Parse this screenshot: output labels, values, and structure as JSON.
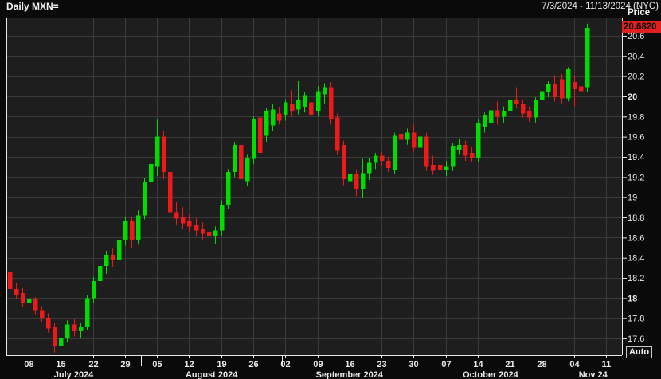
{
  "header": {
    "title": "Daily MXN=",
    "date_range": "7/3/2024 - 11/13/2024 (NYC)"
  },
  "y_axis": {
    "label": "Price",
    "tick_labels": [
      "20.6",
      "20.4",
      "20.2",
      "20",
      "19.8",
      "19.6",
      "19.4",
      "19.2",
      "19",
      "18.8",
      "18.6",
      "18.4",
      "18.2",
      "18",
      "17.8",
      "17.6"
    ],
    "bold_tick_labels": [
      "20",
      "18"
    ],
    "price_badge": {
      "value": "20.6820"
    },
    "auto_button_label": "Auto"
  },
  "x_axis": {
    "week_ticks": [
      {
        "label": "08",
        "slot": 3
      },
      {
        "label": "15",
        "slot": 8
      },
      {
        "label": "22",
        "slot": 13
      },
      {
        "label": "29",
        "slot": 18
      },
      {
        "label": "05",
        "slot": 23
      },
      {
        "label": "12",
        "slot": 28
      },
      {
        "label": "19",
        "slot": 33
      },
      {
        "label": "26",
        "slot": 38
      },
      {
        "label": "02",
        "slot": 43
      },
      {
        "label": "09",
        "slot": 48
      },
      {
        "label": "16",
        "slot": 53
      },
      {
        "label": "23",
        "slot": 58
      },
      {
        "label": "30",
        "slot": 63
      },
      {
        "label": "07",
        "slot": 68
      },
      {
        "label": "14",
        "slot": 73
      },
      {
        "label": "21",
        "slot": 78
      },
      {
        "label": "28",
        "slot": 83
      },
      {
        "label": "04",
        "slot": 88
      },
      {
        "label": "11",
        "slot": 93
      }
    ],
    "month_labels": [
      {
        "label": "July 2024",
        "slot": 10
      },
      {
        "label": "August 2024",
        "slot": 31.5
      },
      {
        "label": "September 2024",
        "slot": 53
      },
      {
        "label": "October 2024",
        "slot": 75
      },
      {
        "label": "Nov 24",
        "slot": 91
      }
    ],
    "month_separators": [
      20.5,
      42.5,
      63.5,
      86.5
    ]
  },
  "colors": {
    "background": "#0a0a0a",
    "plot_background": "#1e1e1e",
    "grid": "#3a3a3a",
    "frame": "#e8e8e8",
    "text": "#e9e9e9",
    "up": "#00dc00",
    "down": "#ee1a1a",
    "badge_background": "#e32020",
    "badge_text": "#000000"
  },
  "chart_data": {
    "type": "candlestick",
    "title": "Daily MXN=",
    "symbol": "MXN=",
    "interval": "Daily",
    "visible_range": "7/3/2024 - 11/13/2024",
    "last_price": 20.682,
    "ylim": [
      17.435,
      20.781
    ],
    "grid_step": 0.2,
    "total_slots": 96,
    "dates": [
      "7/3",
      "7/4",
      "7/5",
      "7/8",
      "7/9",
      "7/10",
      "7/11",
      "7/12",
      "7/15",
      "7/16",
      "7/17",
      "7/18",
      "7/19",
      "7/22",
      "7/23",
      "7/24",
      "7/25",
      "7/26",
      "7/29",
      "7/30",
      "7/31",
      "8/1",
      "8/2",
      "8/5",
      "8/6",
      "8/7",
      "8/8",
      "8/9",
      "8/12",
      "8/13",
      "8/14",
      "8/15",
      "8/16",
      "8/19",
      "8/20",
      "8/21",
      "8/22",
      "8/23",
      "8/26",
      "8/27",
      "8/28",
      "8/29",
      "8/30",
      "9/2",
      "9/3",
      "9/4",
      "9/5",
      "9/6",
      "9/9",
      "9/10",
      "9/11",
      "9/12",
      "9/13",
      "9/16",
      "9/17",
      "9/18",
      "9/19",
      "9/20",
      "9/23",
      "9/24",
      "9/25",
      "9/26",
      "9/27",
      "9/30",
      "10/1",
      "10/2",
      "10/3",
      "10/4",
      "10/7",
      "10/8",
      "10/9",
      "10/10",
      "10/11",
      "10/14",
      "10/15",
      "10/16",
      "10/17",
      "10/18",
      "10/21",
      "10/22",
      "10/23",
      "10/24",
      "10/25",
      "10/28",
      "10/29",
      "10/30",
      "10/31",
      "11/1",
      "11/4",
      "11/5",
      "11/6"
    ],
    "ohlc": [
      [
        18.26,
        18.31,
        18.04,
        18.09
      ],
      [
        18.09,
        18.15,
        17.99,
        18.03
      ],
      [
        18.05,
        18.1,
        17.91,
        17.95
      ],
      [
        17.95,
        18.04,
        17.89,
        17.99
      ],
      [
        17.99,
        18.01,
        17.84,
        17.88
      ],
      [
        17.88,
        17.92,
        17.76,
        17.8
      ],
      [
        17.8,
        17.85,
        17.66,
        17.7
      ],
      [
        17.71,
        17.75,
        17.46,
        17.52
      ],
      [
        17.52,
        17.66,
        17.45,
        17.61
      ],
      [
        17.61,
        17.78,
        17.56,
        17.74
      ],
      [
        17.74,
        17.79,
        17.62,
        17.67
      ],
      [
        17.67,
        17.75,
        17.6,
        17.71
      ],
      [
        17.71,
        18.03,
        17.68,
        18.0
      ],
      [
        18.0,
        18.21,
        17.95,
        18.17
      ],
      [
        18.17,
        18.36,
        18.1,
        18.32
      ],
      [
        18.32,
        18.47,
        18.24,
        18.43
      ],
      [
        18.43,
        18.49,
        18.31,
        18.38
      ],
      [
        18.38,
        18.62,
        18.33,
        18.58
      ],
      [
        18.58,
        18.81,
        18.52,
        18.77
      ],
      [
        18.77,
        18.81,
        18.5,
        18.57
      ],
      [
        18.57,
        18.87,
        18.53,
        18.82
      ],
      [
        18.82,
        19.19,
        18.78,
        19.15
      ],
      [
        19.15,
        20.05,
        19.09,
        19.33
      ],
      [
        19.3,
        19.77,
        19.21,
        19.6
      ],
      [
        19.6,
        19.66,
        19.18,
        19.25
      ],
      [
        19.25,
        19.31,
        18.79,
        18.85
      ],
      [
        18.85,
        18.95,
        18.73,
        18.79
      ],
      [
        18.81,
        18.9,
        18.69,
        18.74
      ],
      [
        18.76,
        18.83,
        18.65,
        18.71
      ],
      [
        18.73,
        18.79,
        18.61,
        18.67
      ],
      [
        18.69,
        18.75,
        18.58,
        18.64
      ],
      [
        18.66,
        18.71,
        18.55,
        18.61
      ],
      [
        18.61,
        18.71,
        18.54,
        18.67
      ],
      [
        18.67,
        18.97,
        18.62,
        18.92
      ],
      [
        18.92,
        19.28,
        18.88,
        19.25
      ],
      [
        19.25,
        19.55,
        19.2,
        19.52
      ],
      [
        19.52,
        19.56,
        19.13,
        19.18
      ],
      [
        19.16,
        19.42,
        19.11,
        19.39
      ],
      [
        19.38,
        19.8,
        19.33,
        19.77
      ],
      [
        19.79,
        19.83,
        19.4,
        19.44
      ],
      [
        19.61,
        19.88,
        19.55,
        19.85
      ],
      [
        19.71,
        19.92,
        19.66,
        19.87
      ],
      [
        19.83,
        19.89,
        19.72,
        19.76
      ],
      [
        19.81,
        19.97,
        19.76,
        19.94
      ],
      [
        19.93,
        20.06,
        19.8,
        19.85
      ],
      [
        19.87,
        20.15,
        19.82,
        19.96
      ],
      [
        19.89,
        20.04,
        19.84,
        20.01
      ],
      [
        19.94,
        19.99,
        19.78,
        19.82
      ],
      [
        19.85,
        20.1,
        19.8,
        20.05
      ],
      [
        20.02,
        20.13,
        19.93,
        20.09
      ],
      [
        20.09,
        20.14,
        19.72,
        19.77
      ],
      [
        19.79,
        19.83,
        19.42,
        19.46
      ],
      [
        19.52,
        19.56,
        19.12,
        19.18
      ],
      [
        19.16,
        19.26,
        19.08,
        19.23
      ],
      [
        19.23,
        19.27,
        19.01,
        19.08
      ],
      [
        19.08,
        19.38,
        18.99,
        19.24
      ],
      [
        19.24,
        19.39,
        19.17,
        19.34
      ],
      [
        19.34,
        19.44,
        19.28,
        19.41
      ],
      [
        19.41,
        19.45,
        19.31,
        19.36
      ],
      [
        19.36,
        19.4,
        19.25,
        19.29
      ],
      [
        19.27,
        19.64,
        19.23,
        19.61
      ],
      [
        19.63,
        19.7,
        19.53,
        19.57
      ],
      [
        19.57,
        19.68,
        19.52,
        19.64
      ],
      [
        19.64,
        19.72,
        19.45,
        19.49
      ],
      [
        19.49,
        19.63,
        19.44,
        19.6
      ],
      [
        19.6,
        19.64,
        19.26,
        19.3
      ],
      [
        19.32,
        19.41,
        19.22,
        19.26
      ],
      [
        19.32,
        19.36,
        19.06,
        19.27
      ],
      [
        19.27,
        19.36,
        19.21,
        19.3
      ],
      [
        19.3,
        19.54,
        19.26,
        19.51
      ],
      [
        19.47,
        19.58,
        19.42,
        19.52
      ],
      [
        19.52,
        19.56,
        19.36,
        19.41
      ],
      [
        19.44,
        19.5,
        19.35,
        19.39
      ],
      [
        19.39,
        19.77,
        19.35,
        19.74
      ],
      [
        19.7,
        19.84,
        19.64,
        19.81
      ],
      [
        19.74,
        19.89,
        19.6,
        19.86
      ],
      [
        19.86,
        19.95,
        19.72,
        19.8
      ],
      [
        19.8,
        19.9,
        19.74,
        19.85
      ],
      [
        19.85,
        20.0,
        19.8,
        19.97
      ],
      [
        19.97,
        20.09,
        19.88,
        19.92
      ],
      [
        19.92,
        19.97,
        19.79,
        19.83
      ],
      [
        19.85,
        19.9,
        19.75,
        19.79
      ],
      [
        19.79,
        19.99,
        19.74,
        19.96
      ],
      [
        19.96,
        20.08,
        19.92,
        20.05
      ],
      [
        20.04,
        20.15,
        19.99,
        20.12
      ],
      [
        20.12,
        20.21,
        19.95,
        19.99
      ],
      [
        20.17,
        20.22,
        19.93,
        19.98
      ],
      [
        19.98,
        20.29,
        19.95,
        20.27
      ],
      [
        20.14,
        20.21,
        19.9,
        20.07
      ],
      [
        20.1,
        20.35,
        19.93,
        20.05
      ],
      [
        20.09,
        20.72,
        20.04,
        20.68
      ]
    ]
  }
}
